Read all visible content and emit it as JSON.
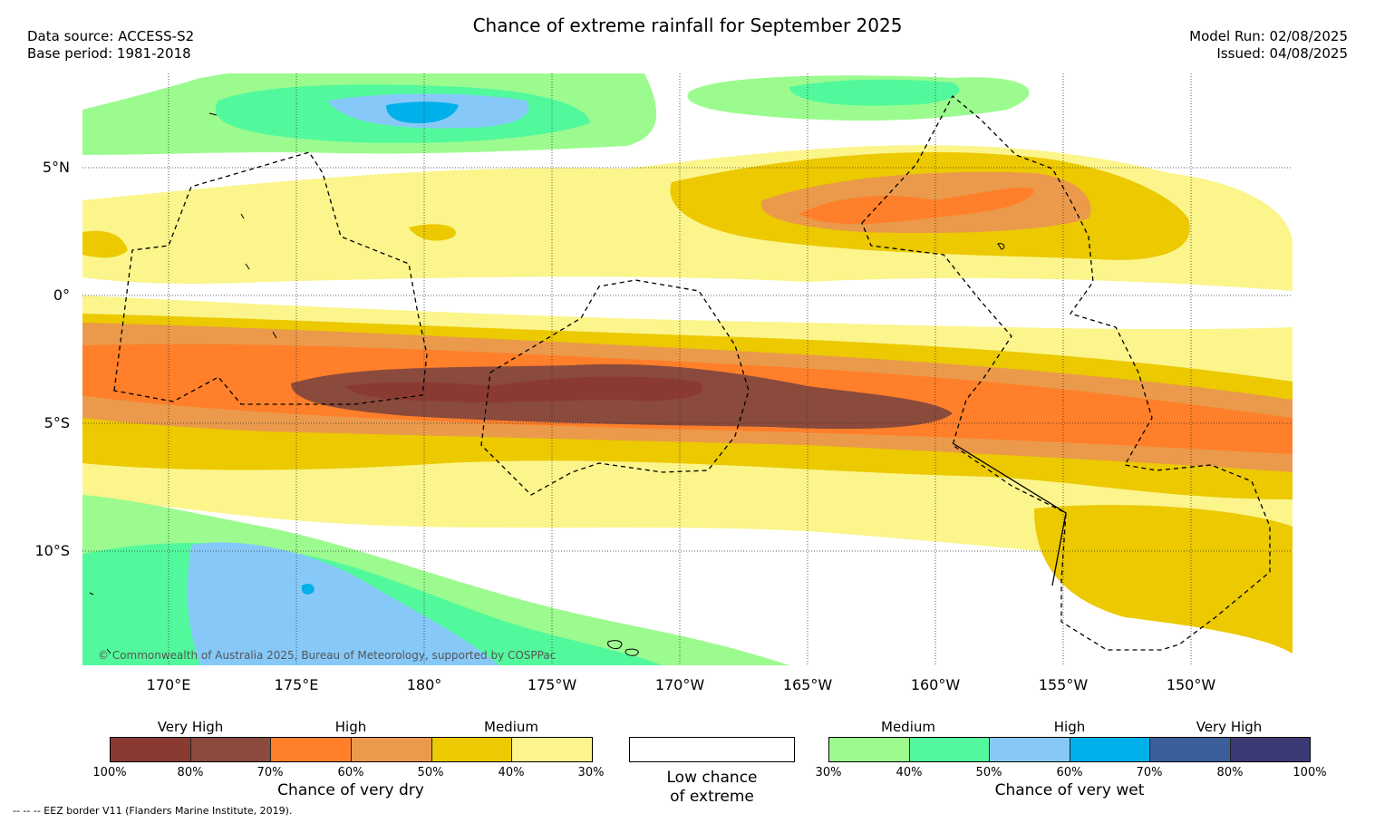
{
  "title": "Chance of extreme rainfall for September 2025",
  "header": {
    "data_source": "Data source: ACCESS-S2",
    "base_period": "Base period: 1981-2018",
    "model_run": "Model Run: 02/08/2025",
    "issued": "Issued: 04/08/2025"
  },
  "axes": {
    "lat_labels": [
      "5°N",
      "0°",
      "5°S",
      "10°S"
    ],
    "lon_labels": [
      "170°E",
      "175°E",
      "180°",
      "175°W",
      "170°W",
      "165°W",
      "160°W",
      "155°W",
      "150°W"
    ]
  },
  "map": {
    "copyright": "© Commonwealth of Australia 2025, Bureau of Meteorology, supported by COSPPac"
  },
  "legend": {
    "dry": {
      "categories": [
        "Very High",
        "High",
        "Medium"
      ],
      "ticks": [
        "100%",
        "80%",
        "70%",
        "60%",
        "50%",
        "40%",
        "30%"
      ],
      "title": "Chance of very dry",
      "colors": [
        "#8b3a32",
        "#8a4a3c",
        "#ff7f2a",
        "#ea9a4a",
        "#ecc900",
        "#fbf58b"
      ]
    },
    "neutral": {
      "title_line1": "Low chance",
      "title_line2": "of extreme",
      "color": "#ffffff"
    },
    "wet": {
      "categories": [
        "Medium",
        "High",
        "Very High"
      ],
      "ticks": [
        "30%",
        "40%",
        "50%",
        "60%",
        "70%",
        "80%",
        "100%"
      ],
      "title": "Chance of very wet",
      "colors": [
        "#9cfb8e",
        "#52f99c",
        "#86c9f9",
        "#00b0eb",
        "#3a5f9b",
        "#3c3a74"
      ]
    }
  },
  "footer": {
    "eez_note": "--  --  -- EEZ border V11 (Flanders Marine Institute, 2019)."
  }
}
